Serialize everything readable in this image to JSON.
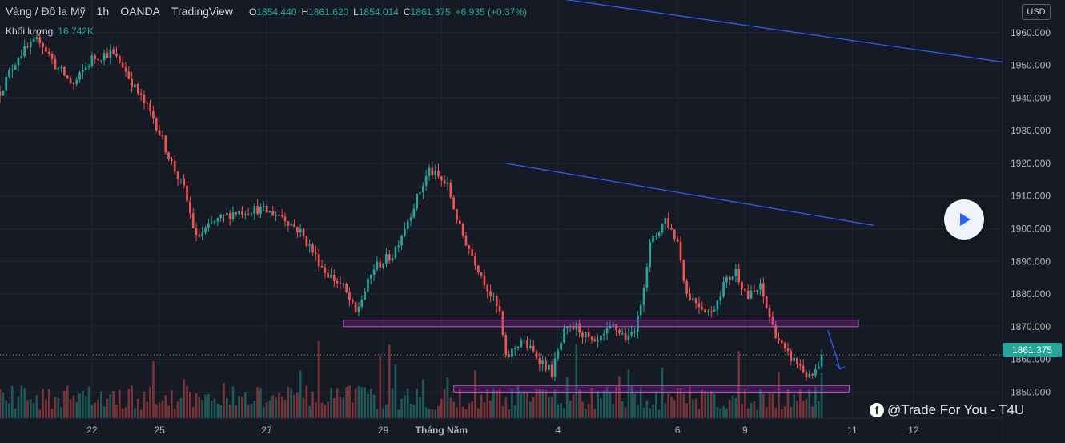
{
  "header": {
    "symbol": "Vàng / Đô la Mỹ",
    "interval": "1h",
    "broker": "OANDA",
    "platform": "TradingView",
    "ohlc": [
      {
        "label": "O",
        "value": "1854.440"
      },
      {
        "label": "H",
        "value": "1861.620"
      },
      {
        "label": "L",
        "value": "1854.014"
      },
      {
        "label": "C",
        "value": "1861.375"
      }
    ],
    "change": "+6.935 (+0.37%)"
  },
  "volume_legend": {
    "label": "Khối lượng",
    "value": "16.742K"
  },
  "currency": "USD",
  "last_price": "1861.375",
  "watermark": "@Trade For You - T4U",
  "colors": {
    "background": "#161a25",
    "up": "#26a69a",
    "down": "#ef5350",
    "trendline": "#2962ff",
    "zone_border": "#c94fd6",
    "zone_fill": "#9c27b0",
    "grid": "#222632"
  },
  "chart_data": {
    "type": "candlestick",
    "ylim": [
      1842,
      1970
    ],
    "grid": true,
    "y_ticks": [
      1960,
      1950,
      1940,
      1930,
      1920,
      1910,
      1900,
      1890,
      1880,
      1870,
      1860,
      1850
    ],
    "y_tick_labels": [
      "1960.000",
      "1950.000",
      "1940.000",
      "1930.000",
      "1920.000",
      "1910.000",
      "1900.000",
      "1890.000",
      "1880.000",
      "1870.000",
      "1860.000",
      "1850.000"
    ],
    "x_ticks": [
      {
        "label": "22",
        "bar": 30
      },
      {
        "label": "25",
        "bar": 52
      },
      {
        "label": "27",
        "bar": 87
      },
      {
        "label": "29",
        "bar": 125
      },
      {
        "label": "Tháng Năm",
        "bar": 144
      },
      {
        "label": "4",
        "bar": 182
      },
      {
        "label": "6",
        "bar": 221
      },
      {
        "label": "9",
        "bar": 243
      },
      {
        "label": "11",
        "bar": 278
      },
      {
        "label": "12",
        "bar": 298
      }
    ],
    "x_range_bars": [
      0,
      327
    ],
    "waypoints": [
      [
        0,
        1942
      ],
      [
        6,
        1953
      ],
      [
        13,
        1958
      ],
      [
        18,
        1950
      ],
      [
        24,
        1944
      ],
      [
        30,
        1952
      ],
      [
        36,
        1954
      ],
      [
        40,
        1950
      ],
      [
        44,
        1943
      ],
      [
        50,
        1934
      ],
      [
        56,
        1920
      ],
      [
        60,
        1912
      ],
      [
        64,
        1897
      ],
      [
        70,
        1902
      ],
      [
        76,
        1905
      ],
      [
        84,
        1906
      ],
      [
        92,
        1904
      ],
      [
        98,
        1899
      ],
      [
        102,
        1893
      ],
      [
        106,
        1887
      ],
      [
        112,
        1882
      ],
      [
        116,
        1874
      ],
      [
        122,
        1888
      ],
      [
        128,
        1892
      ],
      [
        134,
        1905
      ],
      [
        140,
        1918
      ],
      [
        146,
        1913
      ],
      [
        150,
        1900
      ],
      [
        156,
        1888
      ],
      [
        160,
        1880
      ],
      [
        163,
        1874
      ],
      [
        165,
        1860
      ],
      [
        170,
        1866
      ],
      [
        176,
        1860
      ],
      [
        180,
        1856
      ],
      [
        184,
        1868
      ],
      [
        188,
        1870
      ],
      [
        194,
        1864
      ],
      [
        200,
        1870
      ],
      [
        205,
        1866
      ],
      [
        208,
        1872
      ],
      [
        212,
        1895
      ],
      [
        217,
        1903
      ],
      [
        221,
        1896
      ],
      [
        224,
        1880
      ],
      [
        228,
        1877
      ],
      [
        232,
        1874
      ],
      [
        236,
        1883
      ],
      [
        240,
        1887
      ],
      [
        244,
        1879
      ],
      [
        248,
        1882
      ],
      [
        252,
        1870
      ],
      [
        256,
        1862
      ],
      [
        261,
        1858
      ],
      [
        264,
        1854
      ],
      [
        267,
        1857
      ],
      [
        268,
        1861.4
      ]
    ],
    "last_bar": 268,
    "volume": {
      "max": 30000,
      "last": 16742
    },
    "trendlines": [
      {
        "from": [
          165,
          1920
        ],
        "to": [
          285,
          1901
        ]
      },
      {
        "from": [
          163,
          1973
        ],
        "to": [
          327,
          1951
        ]
      }
    ],
    "zones": [
      {
        "x": [
          112,
          280
        ],
        "y": [
          1870,
          1872
        ]
      },
      {
        "x": [
          148,
          277
        ],
        "y": [
          1850,
          1852
        ]
      }
    ],
    "arrow": {
      "from": [
        270,
        1869
      ],
      "to": [
        274,
        1857
      ]
    },
    "last_price_line": 1861.375
  }
}
